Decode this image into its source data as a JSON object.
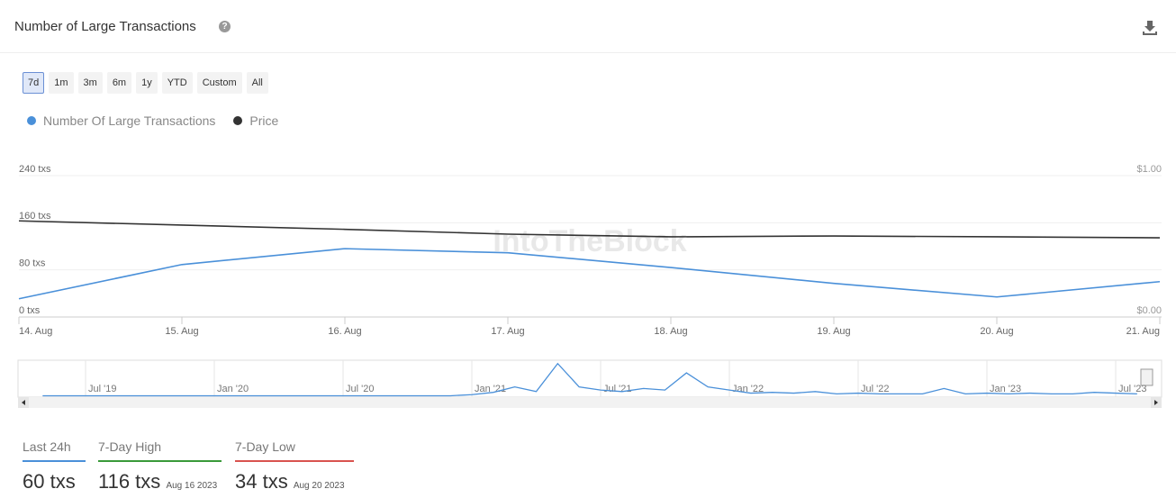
{
  "ui": {
    "title": "Number of Large Transactions",
    "ranges": [
      "7d",
      "1m",
      "3m",
      "6m",
      "1y",
      "YTD",
      "Custom",
      "All"
    ],
    "watermark": "IntoTheBlock"
  },
  "stats": [
    {
      "label": "Last 24h",
      "value": "60 txs",
      "color": "#4a90d9"
    },
    {
      "label": "7-Day High",
      "value": "116 txs",
      "date": "Aug 16 2023",
      "color": "#3a9a3a"
    },
    {
      "label": "7-Day Low",
      "value": "34 txs",
      "date": "Aug 20 2023",
      "color": "#d9534f"
    }
  ],
  "chart_data": [
    {
      "type": "line",
      "categories": [
        "14. Aug",
        "15. Aug",
        "16. Aug",
        "17. Aug",
        "18. Aug",
        "19. Aug",
        "20. Aug",
        "21. Aug"
      ],
      "series": [
        {
          "name": "Number Of Large Transactions",
          "color": "#4a90d9",
          "values": [
            31,
            89,
            116,
            109,
            84,
            57,
            34,
            60
          ]
        },
        {
          "name": "Price",
          "color": "#333333",
          "axis": "y2",
          "values": [
            0.68,
            0.65,
            0.62,
            0.586,
            0.567,
            0.573,
            0.567,
            0.56
          ]
        }
      ],
      "ylim": [
        0,
        240
      ],
      "yticks": [
        {
          "value": 0,
          "label": "0 txs"
        },
        {
          "value": 80,
          "label": "80 txs"
        },
        {
          "value": 160,
          "label": "160 txs"
        },
        {
          "value": 240,
          "label": "240 txs"
        }
      ],
      "y2lim": [
        0,
        1
      ],
      "y2ticks": [
        {
          "value": 0,
          "label": "$0.00"
        },
        {
          "value": 1,
          "label": "$1.00"
        }
      ],
      "grid": true
    },
    {
      "type": "line",
      "x_labels": [
        "Jul '19",
        "Jan '20",
        "Jul '20",
        "Jan '21",
        "Jul '21",
        "Jan '22",
        "Jul '22",
        "Jan '23",
        "Jul '23"
      ],
      "color": "#4a90d9",
      "values": [
        3,
        3,
        3,
        3,
        3,
        3,
        3,
        3,
        3,
        3,
        3,
        3,
        3,
        3,
        3,
        3,
        3,
        3,
        3,
        3,
        10,
        25,
        60,
        30,
        210,
        60,
        40,
        30,
        50,
        40,
        150,
        60,
        40,
        20,
        25,
        20,
        30,
        15,
        20,
        15,
        15,
        15,
        50,
        15,
        20,
        15,
        20,
        15,
        15,
        25,
        20,
        15
      ],
      "ylim": [
        0,
        220
      ]
    }
  ]
}
